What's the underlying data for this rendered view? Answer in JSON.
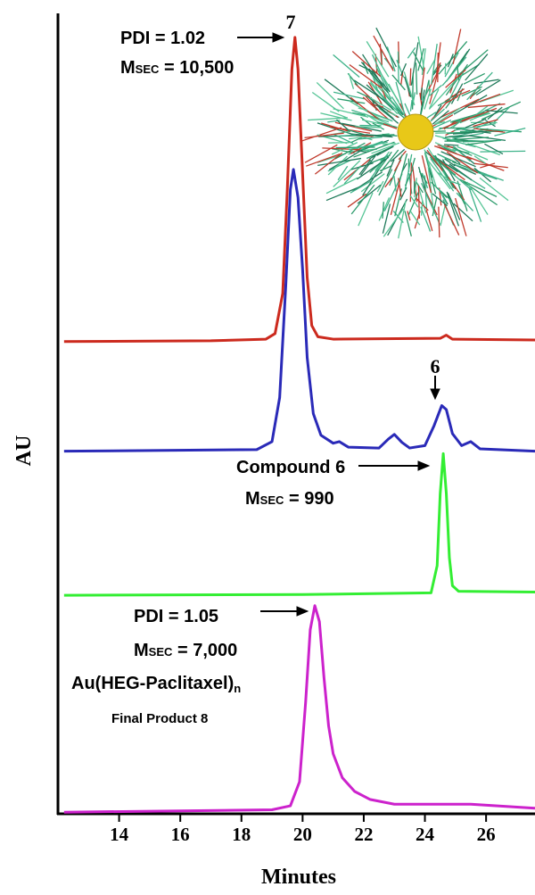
{
  "chart_data": {
    "type": "line",
    "x_label": "Minutes",
    "y_label": "AU",
    "xlim": [
      12,
      27.6
    ],
    "ylim": [
      0,
      100
    ],
    "xticks": [
      14,
      16,
      18,
      20,
      22,
      24,
      26
    ],
    "series": [
      {
        "color": "#cc2a1e",
        "x": [
          12.2,
          17,
          18.8,
          19.1,
          19.35,
          19.5,
          19.65,
          19.75,
          19.85,
          20.0,
          20.15,
          20.3,
          20.5,
          21,
          24.5,
          24.7,
          24.9,
          27.6
        ],
        "values": [
          59,
          59.1,
          59.3,
          60,
          65,
          78,
          93,
          97,
          93,
          80,
          67,
          61,
          59.6,
          59.3,
          59.4,
          59.8,
          59.3,
          59.2
        ]
      },
      {
        "color": "#2a2ab8",
        "x": [
          12.2,
          18.5,
          19.0,
          19.25,
          19.45,
          19.6,
          19.7,
          19.85,
          20.0,
          20.15,
          20.35,
          20.6,
          21.0,
          21.2,
          21.5,
          22.5,
          22.8,
          23.0,
          23.25,
          23.5,
          24.0,
          24.3,
          24.55,
          24.7,
          24.9,
          25.2,
          25.5,
          25.8,
          27.6
        ],
        "values": [
          45.3,
          45.5,
          46.5,
          52,
          66,
          78,
          80.5,
          77,
          68,
          57,
          50,
          47.3,
          46.3,
          46.5,
          45.8,
          45.7,
          46.8,
          47.4,
          46.4,
          45.7,
          46,
          48.5,
          51,
          50.5,
          47.5,
          46,
          46.5,
          45.6,
          45.3
        ]
      },
      {
        "color": "#33ee33",
        "x": [
          12.2,
          20,
          24.2,
          24.4,
          24.5,
          24.6,
          24.7,
          24.8,
          24.9,
          25.1,
          27.6
        ],
        "values": [
          27.3,
          27.4,
          27.6,
          31,
          40,
          45,
          40,
          32,
          28.5,
          27.8,
          27.7
        ]
      },
      {
        "color": "#cc22cc",
        "x": [
          12.2,
          19.0,
          19.6,
          19.9,
          20.1,
          20.25,
          20.4,
          20.55,
          20.7,
          20.85,
          21.0,
          21.3,
          21.7,
          22.2,
          23,
          25.5,
          27.6
        ],
        "values": [
          0.2,
          0.5,
          1,
          4,
          14,
          23,
          26,
          24,
          17,
          11,
          7.5,
          4.5,
          2.8,
          1.8,
          1.2,
          1.2,
          0.7
        ]
      }
    ],
    "annotations": [
      {
        "text": "PDI = 1.02"
      },
      {
        "text": "M",
        "sub": "SEC",
        "after": " = 10,500"
      },
      {
        "text": "7"
      },
      {
        "text": "6"
      },
      {
        "text": "Compound 6"
      },
      {
        "text": "M",
        "sub": "SEC",
        "after": " = 990"
      },
      {
        "text": "PDI = 1.05"
      },
      {
        "text": "M",
        "sub": "SEC",
        "after": " = 7,000"
      },
      {
        "text": "Au(HEG-Paclitaxel)",
        "sub": "n"
      },
      {
        "text": "Final Product 8"
      }
    ]
  }
}
